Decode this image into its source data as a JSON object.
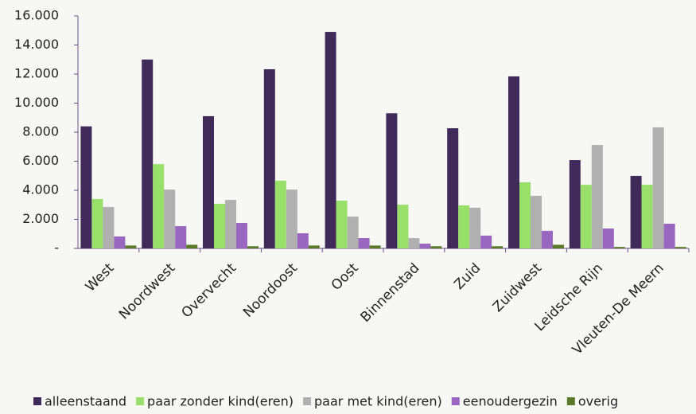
{
  "chart_data": {
    "type": "bar",
    "categories": [
      "West",
      "Noordwest",
      "Overvecht",
      "Noordoost",
      "Oost",
      "Binnenstad",
      "Zuid",
      "Zuidwest",
      "Leidsche Rijn",
      "Vleuten-De Meern"
    ],
    "series": [
      {
        "name": "alleenstaand",
        "color": "#3f2a5a",
        "values": [
          8400,
          13000,
          9100,
          12330,
          14900,
          9300,
          8270,
          11840,
          6080,
          4990
        ]
      },
      {
        "name": "paar zonder kind(eren)",
        "color": "#99e06a",
        "values": [
          3400,
          5800,
          3070,
          4660,
          3290,
          3010,
          2960,
          4550,
          4380,
          4380
        ]
      },
      {
        "name": "paar met kind(eren)",
        "color": "#b0b0b0",
        "values": [
          2850,
          4050,
          3340,
          4050,
          2190,
          710,
          2800,
          3620,
          7120,
          8330
        ]
      },
      {
        "name": "eenoudergezin",
        "color": "#9966c0",
        "values": [
          820,
          1530,
          1750,
          1040,
          710,
          330,
          880,
          1210,
          1370,
          1700
        ]
      },
      {
        "name": "overig",
        "color": "#5a7a2a",
        "values": [
          200,
          250,
          150,
          200,
          200,
          150,
          150,
          250,
          100,
          100
        ]
      }
    ],
    "ylim": [
      0,
      16000
    ],
    "yticks": [
      {
        "value": 0,
        "label": "-"
      },
      {
        "value": 2000,
        "label": "2.000"
      },
      {
        "value": 4000,
        "label": "4.000"
      },
      {
        "value": 6000,
        "label": "6.000"
      },
      {
        "value": 8000,
        "label": "8.000"
      },
      {
        "value": 10000,
        "label": "10.000"
      },
      {
        "value": 12000,
        "label": "12.000"
      },
      {
        "value": 14000,
        "label": "14.000"
      },
      {
        "value": 16000,
        "label": "16.000"
      }
    ],
    "legend": "bottom"
  }
}
